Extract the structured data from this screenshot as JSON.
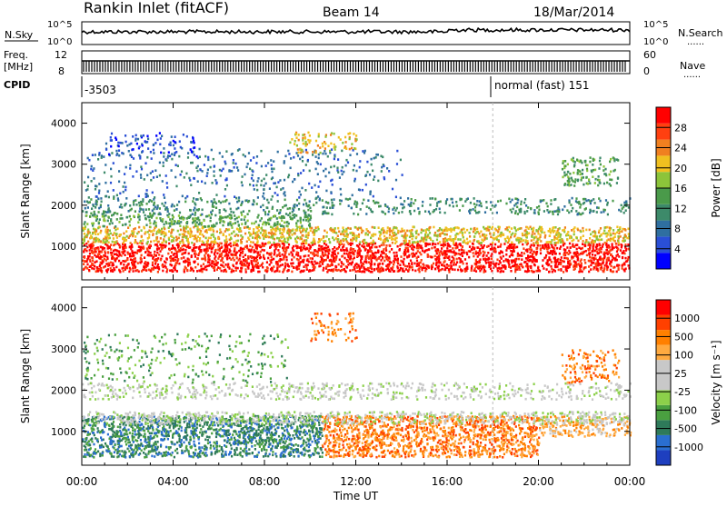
{
  "header": {
    "station": "Rankin Inlet (fitACF)",
    "beam": "Beam 14",
    "date": "18/Mar/2014"
  },
  "strip": {
    "nsky_label": "N.Sky",
    "nsearch_label": "N.Search",
    "nsky_ticks": [
      "10^5",
      "10^0"
    ],
    "nsearch_ticks": [
      "10^5",
      "10^0"
    ],
    "freq_label_top": "Freq.",
    "freq_label_bottom": "[MHz]",
    "freq_ticks": [
      "12",
      "8"
    ],
    "nave_label": "Nave",
    "nave_ticks": [
      "60",
      "0"
    ],
    "dots": "......",
    "cpid_label": "CPID",
    "cpid_segments": [
      {
        "text": "-3503",
        "start_hour": 0.1
      },
      {
        "text": "normal (fast) 151",
        "start_hour": 18.0
      }
    ]
  },
  "chart_data": [
    {
      "type": "heatmap",
      "title": "",
      "xlabel": "Time UT",
      "ylabel": "Slant Range [km]",
      "x_ticks": [
        "00:00",
        "04:00",
        "08:00",
        "12:00",
        "16:00",
        "20:00",
        "00:00"
      ],
      "x_tick_hours": [
        0,
        4,
        8,
        12,
        16,
        20,
        24
      ],
      "xlim": [
        0,
        24
      ],
      "ylim": [
        180,
        4500
      ],
      "y_ticks": [
        1000,
        2000,
        3000,
        4000
      ],
      "colorbar": {
        "label": "Power [dB]",
        "ticks": [
          "4",
          "8",
          "12",
          "16",
          "20",
          "24",
          "28"
        ],
        "colors": [
          "#0000ff",
          "#2a4fd6",
          "#2f6fa0",
          "#3d8a6a",
          "#4a9a4a",
          "#8cc43a",
          "#f0c020",
          "#f08020",
          "#ff4010",
          "#ff0000"
        ]
      },
      "bands": [
        {
          "y": [
            400,
            1100
          ],
          "x": [
            0,
            24
          ],
          "level": 9,
          "density": 0.92
        },
        {
          "y": [
            1100,
            1500
          ],
          "x": [
            0,
            24
          ],
          "level": 6,
          "density": 0.8
        },
        {
          "y": [
            1500,
            1800
          ],
          "x": [
            0,
            10
          ],
          "level": 4,
          "density": 0.6
        },
        {
          "y": [
            1800,
            2200
          ],
          "x": [
            0,
            24
          ],
          "level": 3,
          "density": 0.35
        },
        {
          "y": [
            2200,
            3400
          ],
          "x": [
            0,
            14
          ],
          "level": 2,
          "density": 0.15
        },
        {
          "y": [
            3200,
            3800
          ],
          "x": [
            1,
            5
          ],
          "level": 1,
          "density": 0.25
        },
        {
          "y": [
            3300,
            3800
          ],
          "x": [
            9,
            12
          ],
          "level": 6,
          "density": 0.35
        },
        {
          "y": [
            2500,
            3200
          ],
          "x": [
            21,
            23.5
          ],
          "level": 4,
          "density": 0.45
        }
      ]
    },
    {
      "type": "heatmap",
      "title": "",
      "xlabel": "Time UT",
      "ylabel": "Slant Range [km]",
      "x_ticks": [
        "00:00",
        "04:00",
        "08:00",
        "12:00",
        "16:00",
        "20:00",
        "00:00"
      ],
      "x_tick_hours": [
        0,
        4,
        8,
        12,
        16,
        20,
        24
      ],
      "xlim": [
        0,
        24
      ],
      "ylim": [
        180,
        4500
      ],
      "y_ticks": [
        1000,
        2000,
        3000,
        4000
      ],
      "colorbar": {
        "label": "Velocity [m s⁻¹]",
        "ticks": [
          "1000",
          "500",
          "100",
          "25",
          "-25",
          "-100",
          "-500",
          "-1000"
        ],
        "colors": [
          "#1e3fbf",
          "#2a6fd0",
          "#2e7a5a",
          "#4aa040",
          "#8cd04a",
          "#c8c8c8",
          "#c8c8c8",
          "#ffaa40",
          "#ff8000",
          "#ff4000",
          "#ff0000"
        ]
      },
      "bands": [
        {
          "y": [
            400,
            1400
          ],
          "x": [
            0,
            10.5
          ],
          "level": 2,
          "density": 0.9
        },
        {
          "y": [
            400,
            1400
          ],
          "x": [
            10.5,
            20
          ],
          "level": 8,
          "density": 0.88
        },
        {
          "y": [
            900,
            1400
          ],
          "x": [
            20,
            24
          ],
          "level": 7,
          "density": 0.7
        },
        {
          "y": [
            1200,
            1500
          ],
          "x": [
            0,
            24
          ],
          "level": 5,
          "density": 0.6
        },
        {
          "y": [
            1800,
            2200
          ],
          "x": [
            0,
            24
          ],
          "level": 5,
          "density": 0.4
        },
        {
          "y": [
            2200,
            3400
          ],
          "x": [
            0,
            9
          ],
          "level": 3,
          "density": 0.15
        },
        {
          "y": [
            3200,
            3900
          ],
          "x": [
            10,
            12
          ],
          "level": 8,
          "density": 0.3
        },
        {
          "y": [
            2200,
            3000
          ],
          "x": [
            21,
            23.5
          ],
          "level": 8,
          "density": 0.4
        }
      ]
    }
  ]
}
